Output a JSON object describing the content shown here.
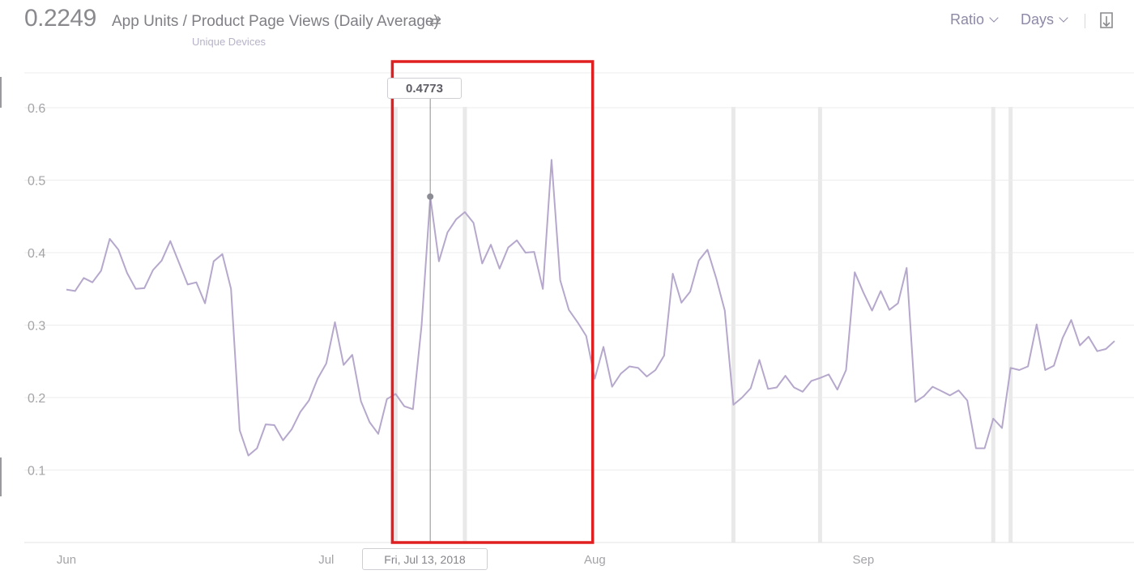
{
  "header": {
    "headline_value": "0.2249",
    "metric_title": "App Units / Product Page Views (Daily Average)",
    "metric_subtitle": "Unique Devices",
    "swap_glyph": "⇄",
    "ratio_label": "Ratio",
    "days_label": "Days",
    "icons": [
      "swap-icon",
      "chevron-down-icon",
      "download-icon"
    ]
  },
  "tooltip": {
    "value": "0.4773",
    "date": "Fri, Jul 13, 2018"
  },
  "colors": {
    "line": "#b6a8cc",
    "highlight": "#e02020",
    "band": "#e9e9e9"
  },
  "chart_data": {
    "type": "line",
    "x_start": "2018-06-01",
    "x_end": "2018-09-30",
    "x_tick_labels": [
      "Jun",
      "Jul",
      "Aug",
      "Sep"
    ],
    "x_tick_dates": [
      "2018-06-01",
      "2018-07-01",
      "2018-08-01",
      "2018-09-01"
    ],
    "y_ticks": [
      0.1,
      0.2,
      0.3,
      0.4,
      0.5,
      0.6
    ],
    "ylim": [
      0,
      0.6
    ],
    "grid": true,
    "series": [
      {
        "values": [
          0.349,
          0.347,
          0.365,
          0.359,
          0.375,
          0.419,
          0.404,
          0.372,
          0.35,
          0.351,
          0.376,
          0.389,
          0.416,
          0.386,
          0.356,
          0.359,
          0.33,
          0.388,
          0.398,
          0.35,
          0.155,
          0.12,
          0.13,
          0.163,
          0.162,
          0.141,
          0.156,
          0.18,
          0.196,
          0.226,
          0.247,
          0.304,
          0.245,
          0.259,
          0.195,
          0.166,
          0.15,
          0.198,
          0.205,
          0.188,
          0.184,
          0.3,
          0.477,
          0.388,
          0.428,
          0.446,
          0.456,
          0.441,
          0.385,
          0.411,
          0.378,
          0.407,
          0.417,
          0.4,
          0.401,
          0.35,
          0.528,
          0.362,
          0.321,
          0.304,
          0.285,
          0.226,
          0.27,
          0.215,
          0.233,
          0.243,
          0.241,
          0.229,
          0.238,
          0.258,
          0.371,
          0.331,
          0.346,
          0.389,
          0.404,
          0.365,
          0.32,
          0.19,
          0.2,
          0.213,
          0.252,
          0.212,
          0.214,
          0.23,
          0.214,
          0.208,
          0.223,
          0.227,
          0.232,
          0.211,
          0.238,
          0.373,
          0.345,
          0.32,
          0.347,
          0.321,
          0.33,
          0.379,
          0.194,
          0.202,
          0.215,
          0.209,
          0.203,
          0.21,
          0.196,
          0.13,
          0.13,
          0.171,
          0.158,
          0.241,
          0.238,
          0.243,
          0.301,
          0.238,
          0.244,
          0.282,
          0.307,
          0.272,
          0.284,
          0.264,
          0.267,
          0.278
        ]
      }
    ],
    "hover": {
      "date": "2018-07-13",
      "value": 0.4773
    },
    "highlight_range": [
      "2018-07-09",
      "2018-07-31"
    ],
    "shaded_dates": [
      "2018-07-09",
      "2018-07-17",
      "2018-08-17",
      "2018-08-27",
      "2018-09-16",
      "2018-09-18"
    ]
  }
}
